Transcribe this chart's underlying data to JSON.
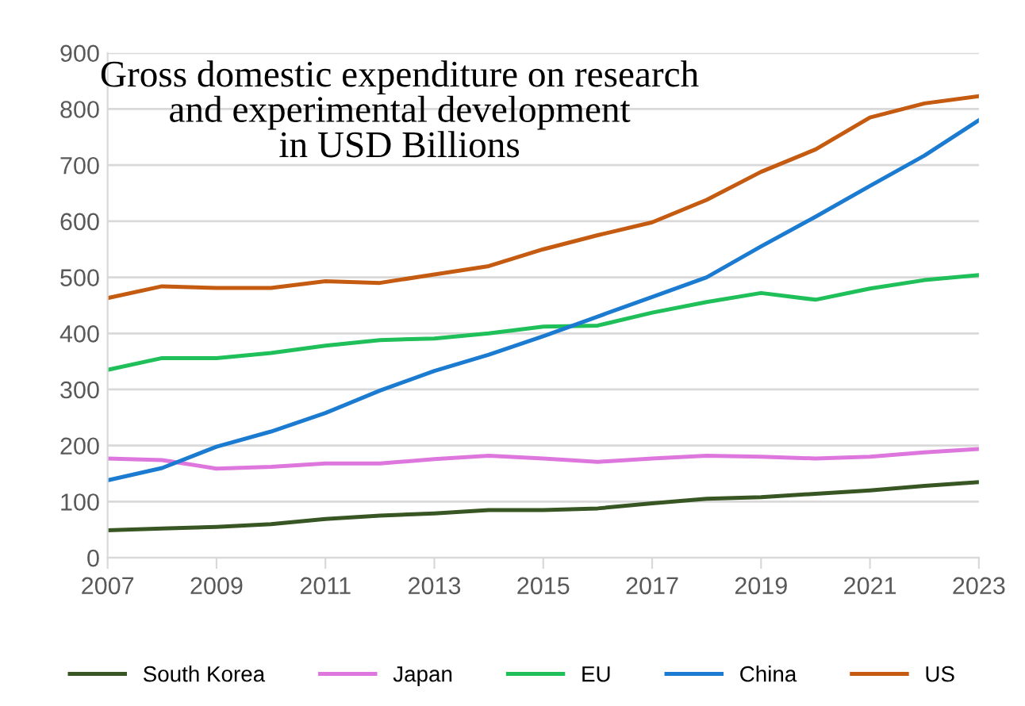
{
  "chart_data": {
    "type": "line",
    "title": "Gross domestic expenditure on research\nand experimental development\nin USD Billions",
    "x": [
      2007,
      2008,
      2009,
      2010,
      2011,
      2012,
      2013,
      2014,
      2015,
      2016,
      2017,
      2018,
      2019,
      2020,
      2021,
      2022,
      2023
    ],
    "series": [
      {
        "name": "South Korea",
        "color": "#375623",
        "values": [
          49,
          52,
          55,
          60,
          69,
          75,
          79,
          85,
          85,
          88,
          97,
          105,
          108,
          114,
          120,
          128,
          135
        ]
      },
      {
        "name": "Japan",
        "color": "#dd77dd",
        "values": [
          177,
          174,
          159,
          162,
          168,
          168,
          176,
          182,
          177,
          171,
          177,
          182,
          180,
          177,
          180,
          188,
          194
        ]
      },
      {
        "name": "EU",
        "color": "#1fbf5a",
        "values": [
          335,
          356,
          356,
          365,
          378,
          388,
          391,
          400,
          412,
          414,
          437,
          456,
          472,
          460,
          480,
          495,
          504
        ]
      },
      {
        "name": "China",
        "color": "#1a7bd0",
        "values": [
          138,
          160,
          198,
          225,
          258,
          298,
          333,
          362,
          395,
          430,
          465,
          500,
          555,
          608,
          663,
          717,
          780
        ]
      },
      {
        "name": "US",
        "color": "#c55a11",
        "values": [
          463,
          484,
          481,
          481,
          493,
          490,
          505,
          520,
          550,
          575,
          598,
          638,
          688,
          728,
          785,
          810,
          823
        ]
      }
    ],
    "xlim": [
      2007,
      2023
    ],
    "xticks": [
      2007,
      2009,
      2011,
      2013,
      2015,
      2017,
      2019,
      2021,
      2023
    ],
    "ylim": [
      0,
      900
    ],
    "yticks": [
      0,
      100,
      200,
      300,
      400,
      500,
      600,
      700,
      800,
      900
    ],
    "grid": "y",
    "legend": "bottom",
    "marker": "none",
    "line_style": "solid"
  }
}
